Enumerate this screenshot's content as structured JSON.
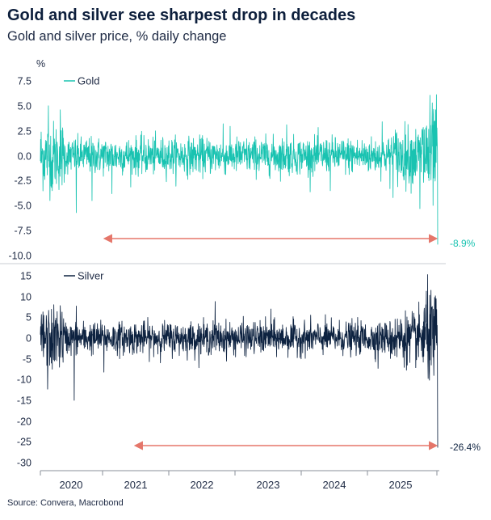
{
  "header": {
    "title": "Gold and silver see sharpest drop in decades",
    "subtitle": "Gold and silver price, % daily change"
  },
  "footer": {
    "source": "Source: Convera, Macrobond"
  },
  "chart_data": [
    {
      "type": "line",
      "series": [
        {
          "name": "Gold",
          "color": "#19c3b1",
          "last_value": -8.9
        }
      ],
      "ylabel": "%",
      "ylim": [
        -10.0,
        7.5
      ],
      "yticks": [
        "7.5",
        "5.0",
        "2.5",
        "0.0",
        "-2.5",
        "-5.0",
        "-7.5",
        "-10.0"
      ],
      "x": [
        "2020",
        "2021",
        "2022",
        "2023",
        "2024",
        "2025"
      ],
      "annotation": "-8.9%",
      "arrow_color": "#e5766a"
    },
    {
      "type": "line",
      "series": [
        {
          "name": "Silver",
          "color": "#0d2240",
          "last_value": -26.4
        }
      ],
      "ylim": [
        -30,
        15
      ],
      "yticks": [
        "15",
        "10",
        "5",
        "0",
        "-5",
        "-10",
        "-15",
        "-20",
        "-25",
        "-30"
      ],
      "x": [
        "2020",
        "2021",
        "2022",
        "2023",
        "2024",
        "2025"
      ],
      "annotation": "-26.4%",
      "arrow_color": "#e5766a"
    }
  ]
}
